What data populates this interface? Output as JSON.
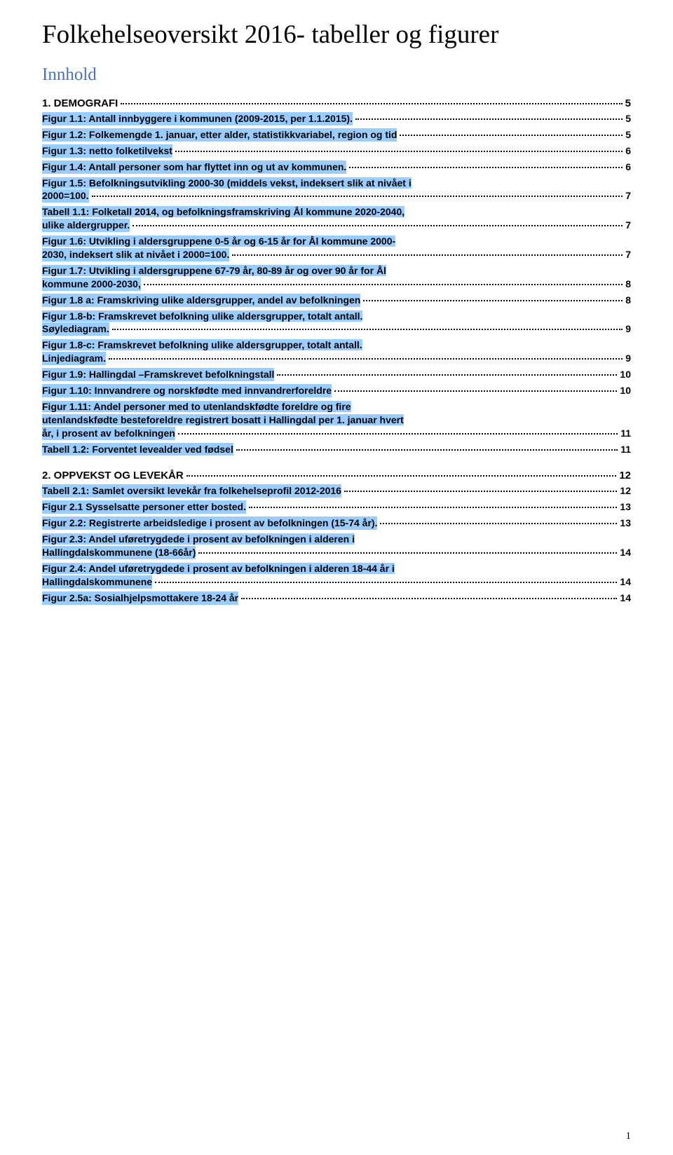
{
  "title": "Folkehelseoversikt 2016- tabeller og figurer",
  "subtitle": "Innhold",
  "page_number": "1",
  "highlight_color": "#99ccff",
  "link_color": "#4472c4",
  "text_color": "#000000",
  "background_color": "#ffffff",
  "sections": [
    {
      "type": "section",
      "label": "1.   DEMOGRAFI",
      "page": "5",
      "highlighted": false
    },
    {
      "type": "entry",
      "line1": "Figur 1.1: Antall innbyggere i kommunen (2009-2015, per 1.1.2015).",
      "line2": "",
      "page": "5",
      "highlighted": true
    },
    {
      "type": "entry",
      "line1": "Figur 1.2: Folkemengde 1. januar, etter alder, statistikkvariabel, region og tid",
      "line2": "",
      "page": "5",
      "highlighted": true
    },
    {
      "type": "entry",
      "line1": "Figur 1.3: netto folketilvekst",
      "line2": "",
      "page": "6",
      "highlighted": true
    },
    {
      "type": "entry",
      "line1": "Figur 1.4: Antall personer som har flyttet inn og ut av kommunen.",
      "line2": "",
      "page": "6",
      "highlighted": true
    },
    {
      "type": "entry-multiline",
      "line1": "Figur 1.5: Befolkningsutvikling 2000-30 (middels vekst, indeksert slik at nivået i",
      "line2": "2000=100.",
      "page": "7",
      "highlighted": true
    },
    {
      "type": "entry-multiline",
      "line1": "Tabell 1.1: Folketall 2014, og befolkningsframskriving Ål kommune 2020-2040,",
      "line2": "ulike aldergrupper.",
      "page": "7",
      "highlighted": true
    },
    {
      "type": "entry-multiline",
      "line1": "Figur 1.6: Utvikling i aldersgruppene 0-5 år og 6-15 år for Ål kommune 2000-",
      "line2": "2030, indeksert slik at nivået i 2000=100.",
      "page": "7",
      "highlighted": true
    },
    {
      "type": "entry-multiline",
      "line1": "Figur 1.7: Utvikling i aldersgruppene 67-79 år, 80-89 år og over 90 år for Ål",
      "line2": "kommune 2000-2030,",
      "page": "8",
      "highlighted": true
    },
    {
      "type": "entry",
      "line1": "Figur 1.8 a: Framskriving ulike aldersgrupper, andel av befolkningen",
      "line2": "",
      "page": "8",
      "highlighted": true
    },
    {
      "type": "entry-multiline",
      "line1": "Figur 1.8-b: Framskrevet befolkning ulike aldersgrupper, totalt antall.",
      "line2": "Søylediagram.",
      "page": "9",
      "highlighted": true
    },
    {
      "type": "entry-multiline",
      "line1": "Figur 1.8-c: Framskrevet befolkning  ulike aldersgrupper, totalt antall.",
      "line2": "Linjediagram.",
      "page": "9",
      "highlighted": true
    },
    {
      "type": "entry",
      "line1": "Figur 1.9: Hallingdal –Framskrevet befolkningstall",
      "line2": "",
      "page": "10",
      "highlighted": true
    },
    {
      "type": "entry",
      "line1": "Figur 1.10: Innvandrere og norskfødte med innvandrerforeldre",
      "line2": "",
      "page": "10",
      "highlighted": true
    },
    {
      "type": "entry-multiline3",
      "line1": "Figur 1.11: Andel personer med to utenlandskfødte foreldre og fire",
      "line2": "utenlandskfødte besteforeldre registrert bosatt i Hallingdal per 1. januar hvert",
      "line3": "år, i prosent av befolkningen",
      "page": "11",
      "highlighted": true
    },
    {
      "type": "entry",
      "line1": "Tabell 1.2: Forventet levealder ved fødsel",
      "line2": "",
      "page": "11",
      "highlighted": true
    },
    {
      "type": "spacer"
    },
    {
      "type": "section",
      "label": "2.   OPPVEKST OG LEVEKÅR",
      "page": "12",
      "highlighted": false
    },
    {
      "type": "entry",
      "line1": "Tabell 2.1: Samlet oversikt levekår fra folkehelseprofil 2012-2016",
      "line2": "",
      "page": "12",
      "highlighted": true
    },
    {
      "type": "entry",
      "line1": "Figur 2.1 Sysselsatte personer etter bosted.",
      "line2": "",
      "page": "13",
      "highlighted": true
    },
    {
      "type": "entry",
      "line1": "Figur 2.2: Registrerte arbeidsledige i prosent av befolkningen (15-74 år).",
      "line2": "",
      "page": "13",
      "highlighted": true
    },
    {
      "type": "entry-multiline",
      "line1": "Figur 2.3: Andel uføretrygdede i prosent av befolkningen i alderen i",
      "line2": "Hallingdalskommunene (18-66år)",
      "page": "14",
      "highlighted": true
    },
    {
      "type": "entry-multiline",
      "line1": "Figur 2.4: Andel uføretrygdede i prosent av befolkningen i alderen 18-44 år i",
      "line2": "Hallingdalskommunene",
      "page": "14",
      "highlighted": true
    },
    {
      "type": "entry",
      "line1": "Figur 2.5a: Sosialhjelpsmottakere 18-24 år",
      "line2": "",
      "page": "14",
      "highlighted": true
    }
  ]
}
